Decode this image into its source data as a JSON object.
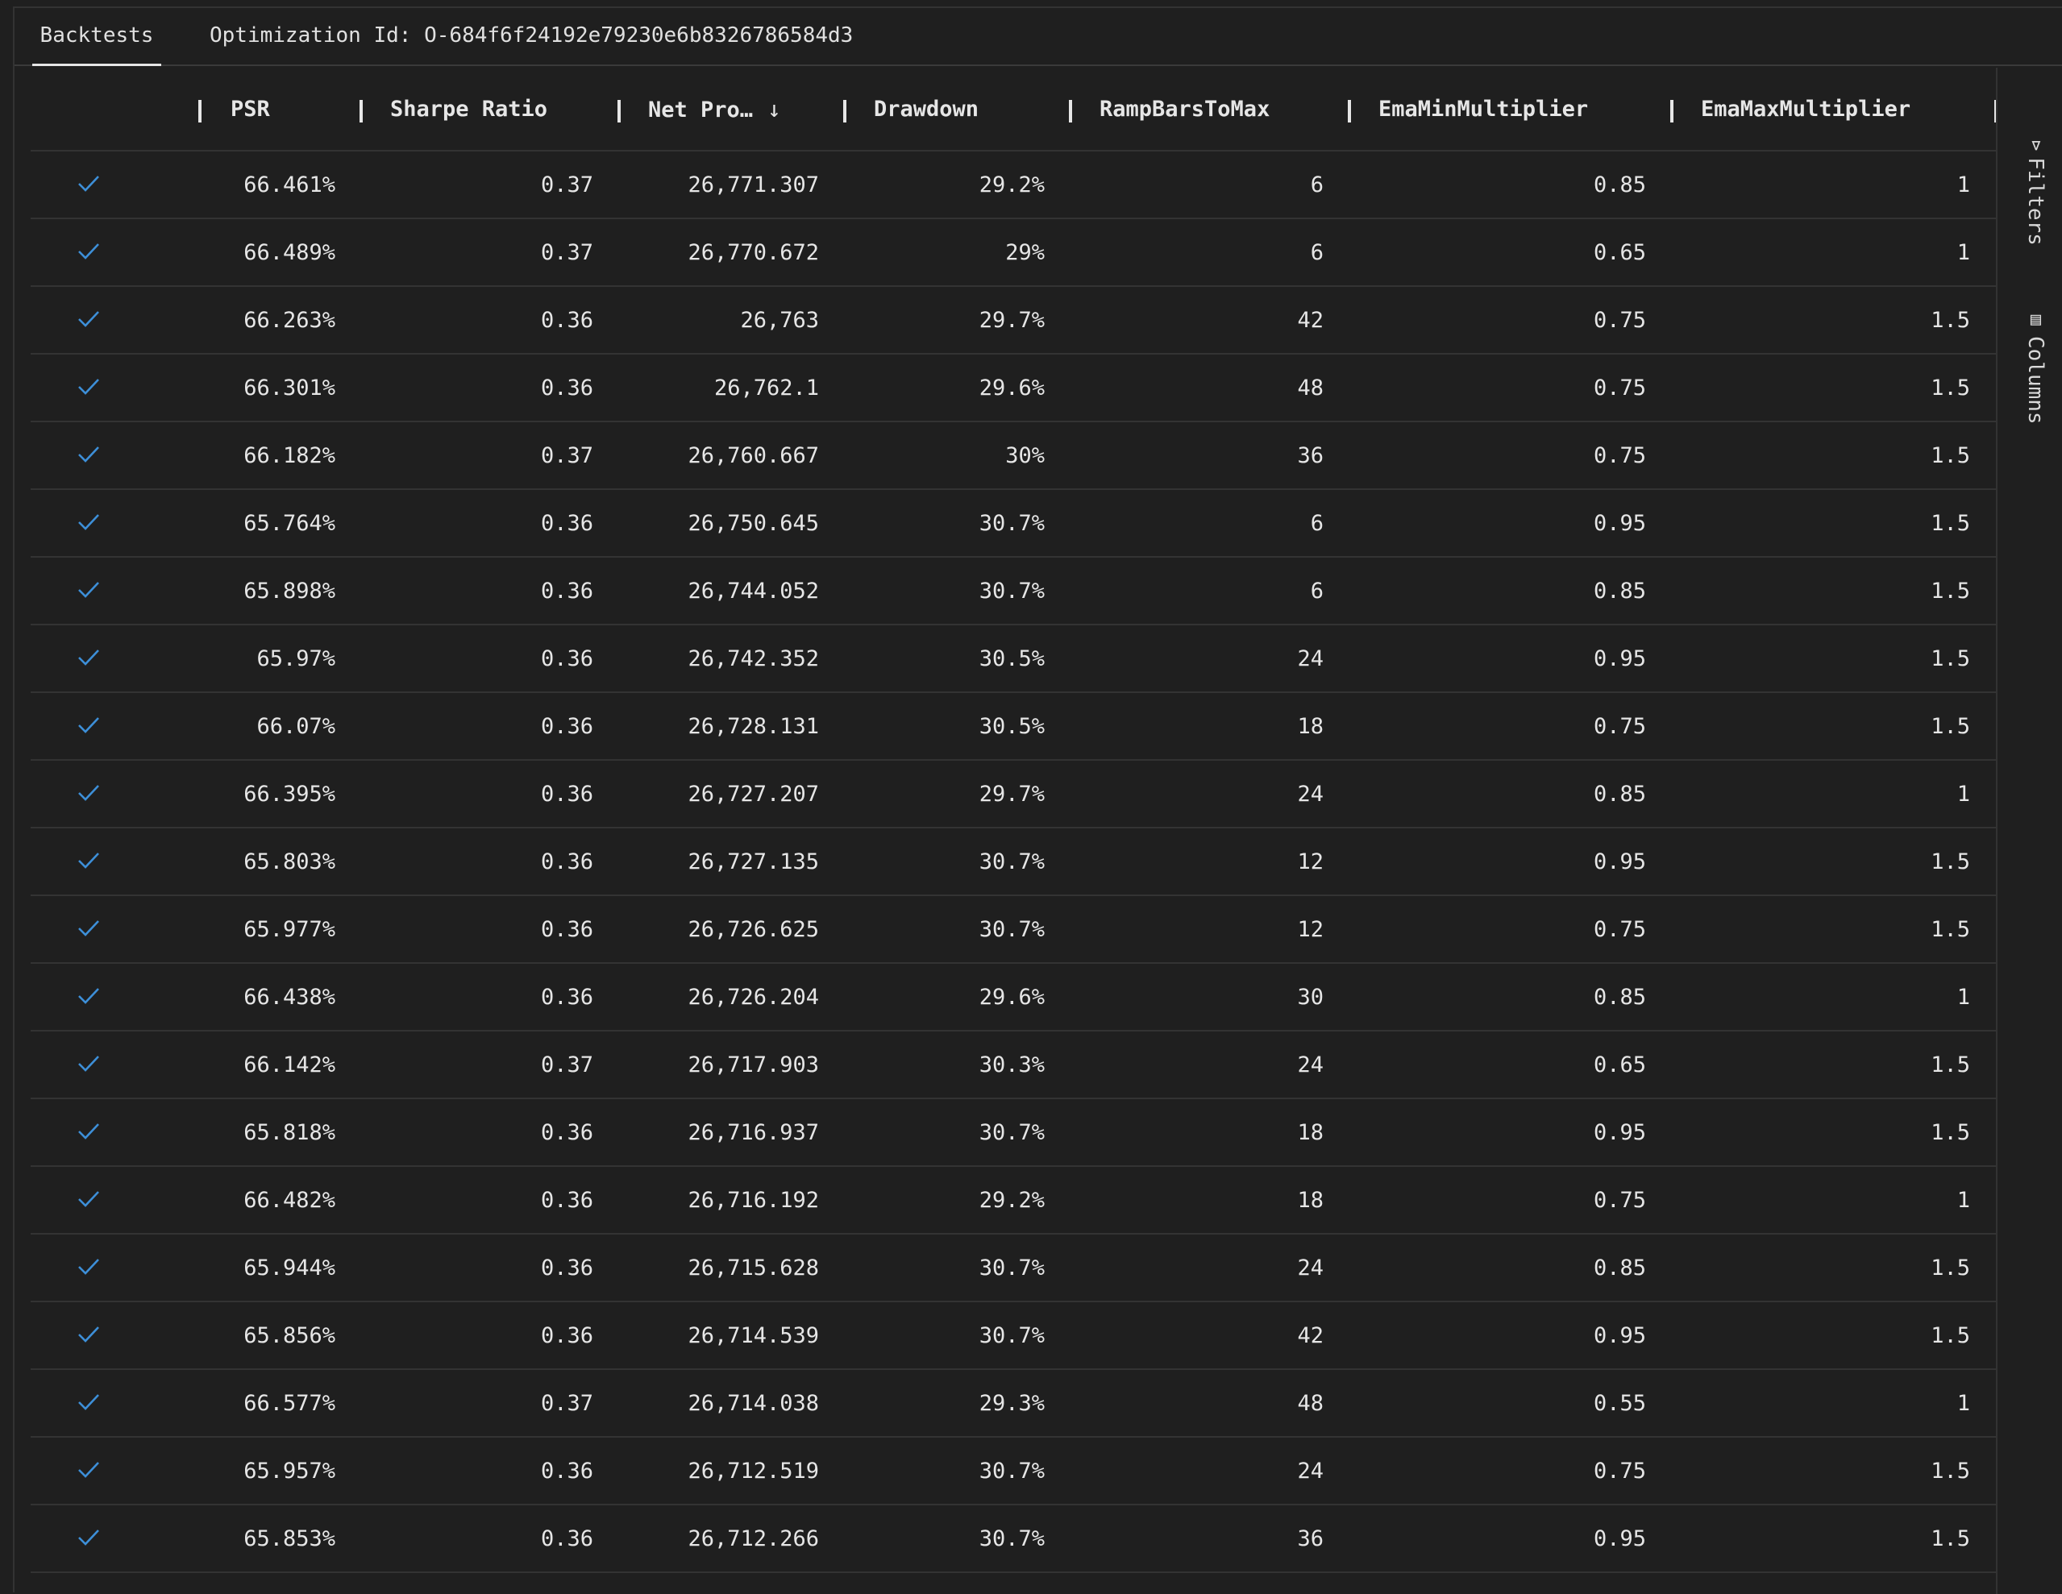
{
  "tabs": {
    "active": "Backtests",
    "info_label": "Optimization Id:",
    "info_value": "O-684f6f24192e79230e6b8326786584d3"
  },
  "sidebar": {
    "filters_label": "Filters",
    "filters_icon": "filter-icon",
    "columns_label": "Columns",
    "columns_icon": "columns-icon"
  },
  "table": {
    "headers": {
      "psr": "PSR",
      "sharpe": "Sharpe Ratio",
      "net_profit": "Net Pro…",
      "drawdown": "Drawdown",
      "ramp": "RampBarsToMax",
      "ema_min": "EmaMinMultiplier",
      "ema_max": "EmaMaxMultiplier"
    },
    "sort_icon": "arrow-down-icon",
    "status_icon": "checkmark-icon",
    "rows": [
      {
        "psr": "66.461%",
        "sharpe": "0.37",
        "net": "26,771.307",
        "dd": "29.2%",
        "ramp": "6",
        "emin": "0.85",
        "emax": "1"
      },
      {
        "psr": "66.489%",
        "sharpe": "0.37",
        "net": "26,770.672",
        "dd": "29%",
        "ramp": "6",
        "emin": "0.65",
        "emax": "1"
      },
      {
        "psr": "66.263%",
        "sharpe": "0.36",
        "net": "26,763",
        "dd": "29.7%",
        "ramp": "42",
        "emin": "0.75",
        "emax": "1.5"
      },
      {
        "psr": "66.301%",
        "sharpe": "0.36",
        "net": "26,762.1",
        "dd": "29.6%",
        "ramp": "48",
        "emin": "0.75",
        "emax": "1.5"
      },
      {
        "psr": "66.182%",
        "sharpe": "0.37",
        "net": "26,760.667",
        "dd": "30%",
        "ramp": "36",
        "emin": "0.75",
        "emax": "1.5"
      },
      {
        "psr": "65.764%",
        "sharpe": "0.36",
        "net": "26,750.645",
        "dd": "30.7%",
        "ramp": "6",
        "emin": "0.95",
        "emax": "1.5"
      },
      {
        "psr": "65.898%",
        "sharpe": "0.36",
        "net": "26,744.052",
        "dd": "30.7%",
        "ramp": "6",
        "emin": "0.85",
        "emax": "1.5"
      },
      {
        "psr": "65.97%",
        "sharpe": "0.36",
        "net": "26,742.352",
        "dd": "30.5%",
        "ramp": "24",
        "emin": "0.95",
        "emax": "1.5"
      },
      {
        "psr": "66.07%",
        "sharpe": "0.36",
        "net": "26,728.131",
        "dd": "30.5%",
        "ramp": "18",
        "emin": "0.75",
        "emax": "1.5"
      },
      {
        "psr": "66.395%",
        "sharpe": "0.36",
        "net": "26,727.207",
        "dd": "29.7%",
        "ramp": "24",
        "emin": "0.85",
        "emax": "1"
      },
      {
        "psr": "65.803%",
        "sharpe": "0.36",
        "net": "26,727.135",
        "dd": "30.7%",
        "ramp": "12",
        "emin": "0.95",
        "emax": "1.5"
      },
      {
        "psr": "65.977%",
        "sharpe": "0.36",
        "net": "26,726.625",
        "dd": "30.7%",
        "ramp": "12",
        "emin": "0.75",
        "emax": "1.5"
      },
      {
        "psr": "66.438%",
        "sharpe": "0.36",
        "net": "26,726.204",
        "dd": "29.6%",
        "ramp": "30",
        "emin": "0.85",
        "emax": "1"
      },
      {
        "psr": "66.142%",
        "sharpe": "0.37",
        "net": "26,717.903",
        "dd": "30.3%",
        "ramp": "24",
        "emin": "0.65",
        "emax": "1.5"
      },
      {
        "psr": "65.818%",
        "sharpe": "0.36",
        "net": "26,716.937",
        "dd": "30.7%",
        "ramp": "18",
        "emin": "0.95",
        "emax": "1.5"
      },
      {
        "psr": "66.482%",
        "sharpe": "0.36",
        "net": "26,716.192",
        "dd": "29.2%",
        "ramp": "18",
        "emin": "0.75",
        "emax": "1"
      },
      {
        "psr": "65.944%",
        "sharpe": "0.36",
        "net": "26,715.628",
        "dd": "30.7%",
        "ramp": "24",
        "emin": "0.85",
        "emax": "1.5"
      },
      {
        "psr": "65.856%",
        "sharpe": "0.36",
        "net": "26,714.539",
        "dd": "30.7%",
        "ramp": "42",
        "emin": "0.95",
        "emax": "1.5"
      },
      {
        "psr": "66.577%",
        "sharpe": "0.37",
        "net": "26,714.038",
        "dd": "29.3%",
        "ramp": "48",
        "emin": "0.55",
        "emax": "1"
      },
      {
        "psr": "65.957%",
        "sharpe": "0.36",
        "net": "26,712.519",
        "dd": "30.7%",
        "ramp": "24",
        "emin": "0.75",
        "emax": "1.5"
      },
      {
        "psr": "65.853%",
        "sharpe": "0.36",
        "net": "26,712.266",
        "dd": "30.7%",
        "ramp": "36",
        "emin": "0.95",
        "emax": "1.5"
      }
    ]
  },
  "colors": {
    "background": "#1f1f1f",
    "checkmark": "#3d8fd8",
    "text": "#e6e6e6",
    "divider": "#333333"
  }
}
